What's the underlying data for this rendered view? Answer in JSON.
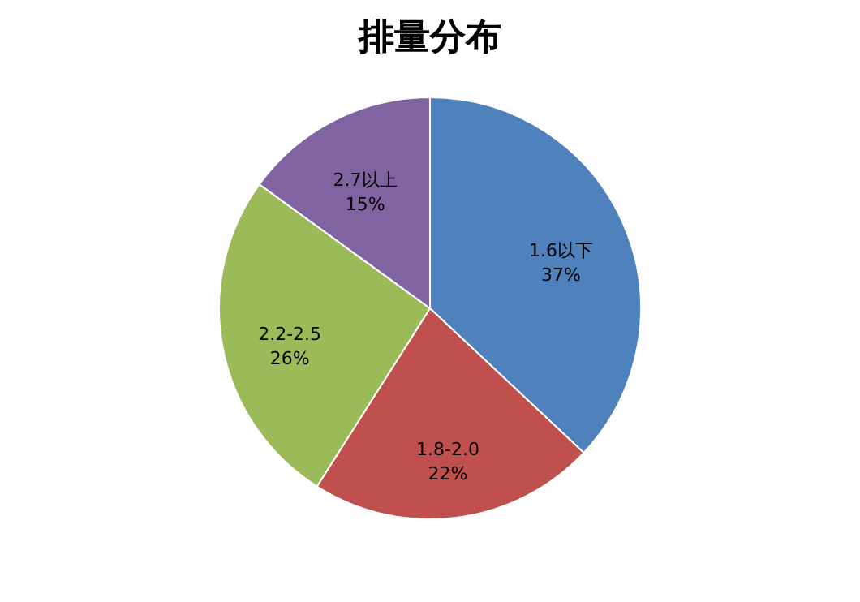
{
  "chart_data": {
    "type": "pie",
    "title": "排量分布",
    "categories": [
      "1.6以下",
      "1.8-2.0",
      "2.2-2.5",
      "2.7以上"
    ],
    "values": [
      37,
      22,
      26,
      15
    ],
    "colors": [
      "#4f81bd",
      "#c0504d",
      "#9bbb59",
      "#8064a2"
    ],
    "value_labels": [
      "37%",
      "22%",
      "26%",
      "15%"
    ],
    "legend": false
  }
}
